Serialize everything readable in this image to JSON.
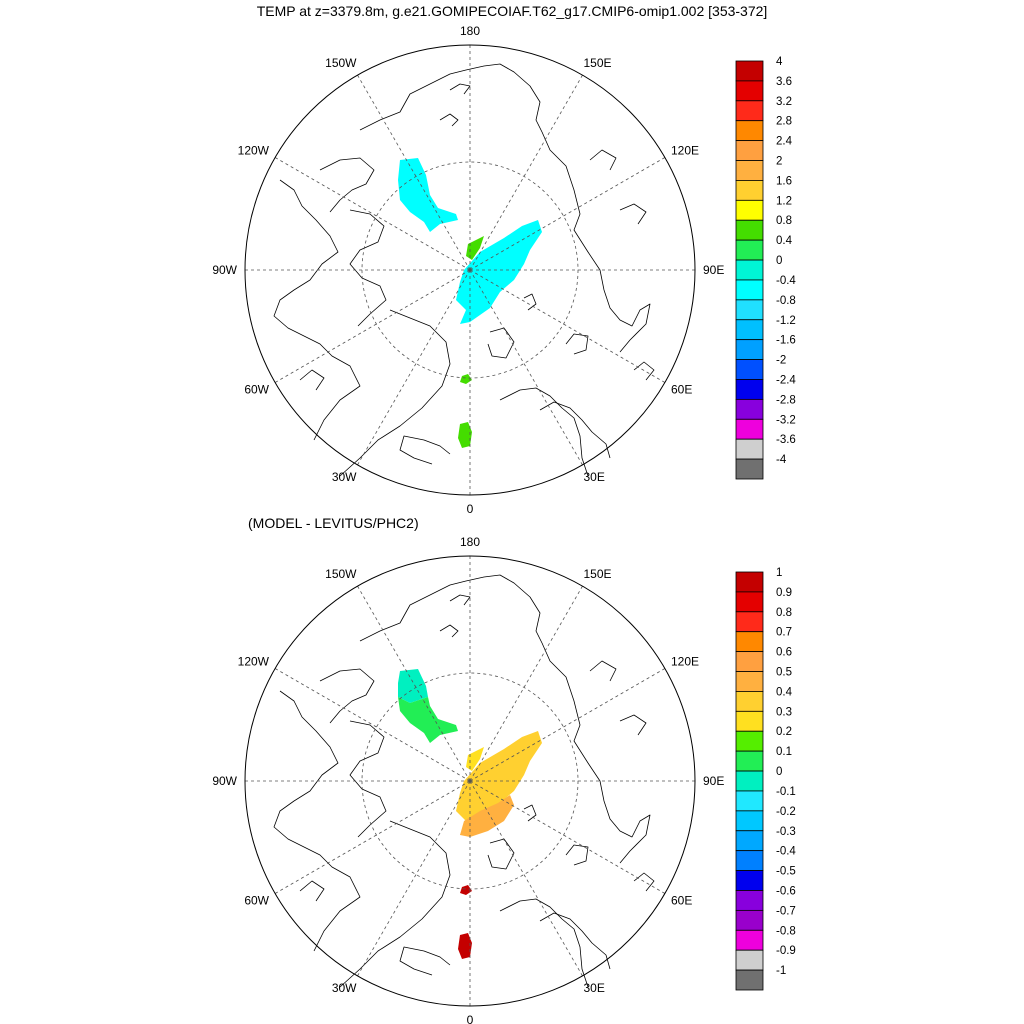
{
  "figure": {
    "title": "TEMP at z=3379.8m, g.e21.GOMIPECOIAF.T62_g17.CMIP6-omip1.002 [353-372]",
    "subtitle": "(MODEL - LEVITUS/PHC2)"
  },
  "longitude_labels": [
    "180",
    "150E",
    "120E",
    "90E",
    "60E",
    "30E",
    "0",
    "30W",
    "60W",
    "90W",
    "120W",
    "150W"
  ],
  "panels": [
    {
      "name": "model",
      "colorbar": {
        "labels": [
          "4",
          "3.6",
          "3.2",
          "2.8",
          "2.4",
          "2",
          "1.6",
          "1.2",
          "0.8",
          "0.4",
          "0",
          "-0.4",
          "-0.8",
          "-1.2",
          "-1.6",
          "-2",
          "-2.4",
          "-2.8",
          "-3.2",
          "-3.6",
          "-4"
        ],
        "colors": [
          "#c40000",
          "#e40000",
          "#ff2a1a",
          "#ff8800",
          "#ffa040",
          "#ffb040",
          "#ffd030",
          "#ffff00",
          "#44dd00",
          "#22ee55",
          "#00f5d5",
          "#00ffff",
          "#20e0ff",
          "#00c0ff",
          "#00a0ff",
          "#0050ff",
          "#0000ee",
          "#8800dd",
          "#ee00dd",
          "#cfcfcf",
          "#707070"
        ]
      },
      "fields": [
        {
          "region": "Beaufort/Canada Basin",
          "color": "#00ffff"
        },
        {
          "region": "Eurasian Basin",
          "color": "#00ffff"
        },
        {
          "region": "Fram Strait",
          "color": "#44dd00"
        },
        {
          "region": "Norwegian Sea",
          "color": "#44dd00"
        },
        {
          "region": "Eurasian Basin small patch",
          "color": "#44dd00"
        }
      ]
    },
    {
      "name": "difference",
      "colorbar": {
        "labels": [
          "1",
          "0.9",
          "0.8",
          "0.7",
          "0.6",
          "0.5",
          "0.4",
          "0.3",
          "0.2",
          "0.1",
          "0",
          "-0.1",
          "-0.2",
          "-0.3",
          "-0.4",
          "-0.5",
          "-0.6",
          "-0.7",
          "-0.8",
          "-0.9",
          "-1"
        ],
        "colors": [
          "#c40000",
          "#e40000",
          "#ff2a1a",
          "#ff8800",
          "#ffa040",
          "#ffb040",
          "#ffd030",
          "#ffe020",
          "#55ee00",
          "#22ee55",
          "#00f0c0",
          "#20e8ff",
          "#00c8ff",
          "#00a8ff",
          "#0080ff",
          "#0000ee",
          "#8800dd",
          "#9900cc",
          "#ee00dd",
          "#cfcfcf",
          "#707070"
        ]
      },
      "fields": [
        {
          "region": "Beaufort/Canada Basin north",
          "color": "#00f0c0"
        },
        {
          "region": "Beaufort/Canada Basin south",
          "color": "#22ee55"
        },
        {
          "region": "Eurasian Basin",
          "color": "#ffd030"
        },
        {
          "region": "Eurasian Basin south",
          "color": "#ffb040"
        },
        {
          "region": "Eurasian Basin small patch",
          "color": "#ffe020"
        },
        {
          "region": "Fram Strait",
          "color": "#c40000"
        },
        {
          "region": "Norwegian Sea",
          "color": "#c40000"
        }
      ]
    }
  ]
}
